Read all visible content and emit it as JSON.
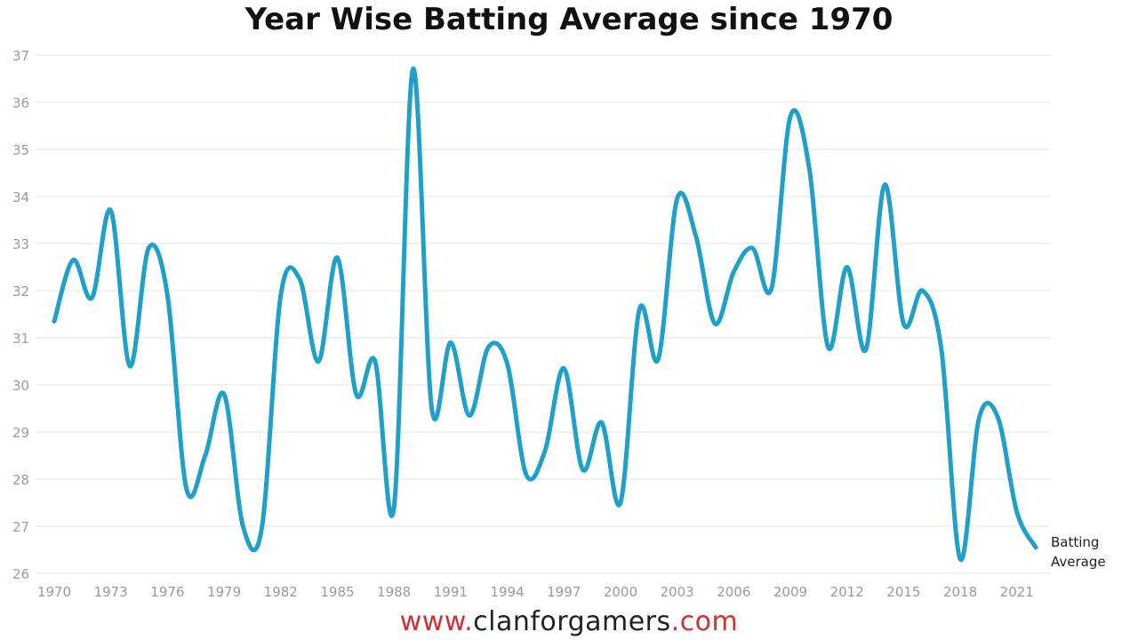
{
  "chart_data": {
    "type": "line",
    "title": "Year Wise Batting Average since 1970",
    "xlabel": "",
    "ylabel": "",
    "x": [
      1970,
      1971,
      1972,
      1973,
      1974,
      1975,
      1976,
      1977,
      1978,
      1979,
      1980,
      1981,
      1982,
      1983,
      1984,
      1985,
      1986,
      1987,
      1988,
      1989,
      1990,
      1991,
      1992,
      1993,
      1994,
      1995,
      1996,
      1997,
      1998,
      1999,
      2000,
      2001,
      2002,
      2003,
      2004,
      2005,
      2006,
      2007,
      2008,
      2009,
      2010,
      2011,
      2012,
      2013,
      2014,
      2015,
      2016,
      2017,
      2018,
      2019,
      2020,
      2021,
      2022
    ],
    "xticks": [
      "1970",
      "1973",
      "1976",
      "1979",
      "1982",
      "1985",
      "1988",
      "1991",
      "1994",
      "1997",
      "2000",
      "2003",
      "2006",
      "2009",
      "2012",
      "2015",
      "2018",
      "2021"
    ],
    "yticks": [
      "26",
      "27",
      "28",
      "29",
      "30",
      "31",
      "32",
      "33",
      "34",
      "35",
      "36",
      "37"
    ],
    "ylim": [
      26,
      37
    ],
    "grid": true,
    "series": [
      {
        "name": "Batting Average",
        "color": "#1fa0c8",
        "values": [
          31.35,
          32.65,
          31.85,
          33.7,
          30.4,
          32.9,
          31.9,
          27.8,
          28.5,
          29.8,
          27.0,
          26.97,
          31.9,
          32.25,
          30.5,
          32.7,
          29.8,
          30.5,
          27.4,
          36.7,
          29.5,
          30.9,
          29.35,
          30.8,
          30.45,
          28.1,
          28.6,
          30.35,
          28.2,
          29.2,
          27.5,
          31.6,
          30.55,
          33.95,
          33.15,
          31.3,
          32.4,
          32.9,
          32.05,
          35.7,
          34.6,
          30.8,
          32.5,
          30.75,
          34.25,
          31.3,
          32.0,
          30.75,
          26.3,
          29.3,
          29.3,
          27.3,
          26.55
        ]
      }
    ],
    "legend_label_line1": "Batting",
    "legend_label_line2": "Average",
    "legend_position": "right, at line end"
  },
  "watermark": {
    "prefix": "www.",
    "brand": "clanforgamers",
    "suffix": ".com"
  }
}
